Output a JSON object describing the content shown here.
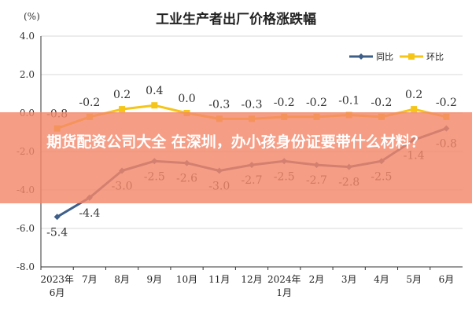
{
  "unit_label": "(%)",
  "banner": {
    "text": "期货配资公司大全 在深圳，办小孩身份证要带什么材料？",
    "color": "#f4876a"
  },
  "chart_data": {
    "type": "line",
    "title": "工业生产者出厂价格涨跌幅",
    "categories": [
      "2023年\n6月",
      "7月",
      "8月",
      "9月",
      "10月",
      "11月",
      "12月",
      "2024年\n1月",
      "2月",
      "3月",
      "4月",
      "5月",
      "6月"
    ],
    "ylim": [
      -8.0,
      4.0
    ],
    "yticks": [
      "4.0",
      "2.0",
      "0.0",
      "-2.0",
      "-4.0",
      "-6.0",
      "-8.0"
    ],
    "grid": true,
    "legend_position": "top-right",
    "series": [
      {
        "name": "同比",
        "color": "#3e5f8a",
        "values": [
          -5.4,
          -4.4,
          -3.0,
          -2.5,
          -2.6,
          -3.0,
          -2.7,
          -2.5,
          -2.7,
          -2.8,
          -2.5,
          -1.4,
          -0.8
        ],
        "labels": [
          "-5.4",
          "-4.4",
          "-3.0",
          "-2.5",
          "-2.6",
          "-3.0",
          "-2.7",
          "-2.5",
          "-2.7",
          "-2.8",
          "-2.5",
          "-1.4",
          "-0.8"
        ]
      },
      {
        "name": "环比",
        "color": "#f5c518",
        "values": [
          -0.8,
          -0.2,
          0.2,
          0.4,
          0.0,
          -0.3,
          -0.3,
          -0.2,
          -0.2,
          -0.1,
          -0.2,
          0.2,
          -0.2
        ],
        "labels": [
          "-0.8",
          "-0.2",
          "0.2",
          "0.4",
          "0.0",
          "-0.3",
          "-0.3",
          "-0.2",
          "-0.2",
          "-0.1",
          "-0.2",
          "0.2",
          "-0.2"
        ]
      }
    ]
  }
}
